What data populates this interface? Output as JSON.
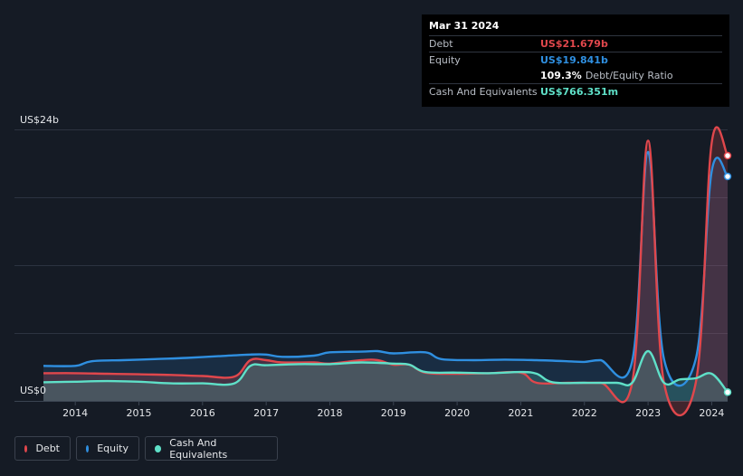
{
  "tooltip": {
    "date": "Mar 31 2024",
    "debt_label": "Debt",
    "debt_value": "US$21.679b",
    "equity_label": "Equity",
    "equity_value": "US$19.841b",
    "ratio_value": "109.3%",
    "ratio_label": "Debt/Equity Ratio",
    "cash_label": "Cash And Equivalents",
    "cash_value": "US$766.351m"
  },
  "legend": [
    {
      "label": "Debt",
      "color": "#e0474c"
    },
    {
      "label": "Equity",
      "color": "#2f8fe0"
    },
    {
      "label": "Cash And Equivalents",
      "color": "#5fe0c8"
    }
  ],
  "colors": {
    "debt": "#e0474c",
    "equity": "#2f8fe0",
    "cash": "#5fe0c8",
    "grid": "#2c3340",
    "background": "#151b25"
  },
  "chart_data": {
    "type": "area",
    "title": "",
    "xlabel": "",
    "ylabel": "",
    "y_top_label": "US$24b",
    "y_bottom_label": "US$0",
    "ylim": [
      0,
      24
    ],
    "xlim": [
      2013.5,
      2024.25
    ],
    "x_ticks": [
      {
        "value": 2014,
        "label": "2014"
      },
      {
        "value": 2015,
        "label": "2015"
      },
      {
        "value": 2016,
        "label": "2016"
      },
      {
        "value": 2017,
        "label": "2017"
      },
      {
        "value": 2018,
        "label": "2018"
      },
      {
        "value": 2019,
        "label": "2019"
      },
      {
        "value": 2020,
        "label": "2020"
      },
      {
        "value": 2021,
        "label": "2021"
      },
      {
        "value": 2022,
        "label": "2022"
      },
      {
        "value": 2023,
        "label": "2023"
      },
      {
        "value": 2024,
        "label": "2024"
      }
    ],
    "series": [
      {
        "name": "Equity",
        "key": "equity",
        "points": [
          [
            2013.5,
            3.1
          ],
          [
            2014.0,
            3.1
          ],
          [
            2014.25,
            3.5
          ],
          [
            2014.75,
            3.6
          ],
          [
            2015.25,
            3.7
          ],
          [
            2015.75,
            3.8
          ],
          [
            2016.25,
            3.95
          ],
          [
            2016.75,
            4.1
          ],
          [
            2017.0,
            4.1
          ],
          [
            2017.25,
            3.9
          ],
          [
            2017.75,
            4.0
          ],
          [
            2018.0,
            4.3
          ],
          [
            2018.5,
            4.35
          ],
          [
            2018.75,
            4.4
          ],
          [
            2019.0,
            4.2
          ],
          [
            2019.5,
            4.3
          ],
          [
            2019.75,
            3.7
          ],
          [
            2020.25,
            3.6
          ],
          [
            2020.75,
            3.65
          ],
          [
            2021.25,
            3.6
          ],
          [
            2021.75,
            3.5
          ],
          [
            2022.0,
            3.45
          ],
          [
            2022.25,
            3.6
          ],
          [
            2022.75,
            3.5
          ],
          [
            2023.0,
            22.0
          ],
          [
            2023.25,
            3.7
          ],
          [
            2023.75,
            3.7
          ],
          [
            2024.0,
            20.3
          ],
          [
            2024.25,
            19.841
          ]
        ]
      },
      {
        "name": "Debt",
        "key": "debt",
        "points": [
          [
            2013.5,
            2.45
          ],
          [
            2014.0,
            2.45
          ],
          [
            2014.5,
            2.4
          ],
          [
            2015.0,
            2.35
          ],
          [
            2015.5,
            2.3
          ],
          [
            2016.0,
            2.2
          ],
          [
            2016.5,
            2.15
          ],
          [
            2016.75,
            3.6
          ],
          [
            2017.0,
            3.6
          ],
          [
            2017.25,
            3.4
          ],
          [
            2017.75,
            3.4
          ],
          [
            2018.0,
            3.3
          ],
          [
            2018.5,
            3.6
          ],
          [
            2018.75,
            3.6
          ],
          [
            2019.0,
            3.2
          ],
          [
            2019.25,
            3.2
          ],
          [
            2019.5,
            2.5
          ],
          [
            2020.0,
            2.4
          ],
          [
            2020.5,
            2.45
          ],
          [
            2021.0,
            2.5
          ],
          [
            2021.25,
            1.6
          ],
          [
            2021.75,
            1.6
          ],
          [
            2022.25,
            1.6
          ],
          [
            2022.75,
            1.6
          ],
          [
            2023.0,
            23.0
          ],
          [
            2023.25,
            1.6
          ],
          [
            2023.75,
            1.6
          ],
          [
            2024.0,
            22.8
          ],
          [
            2024.25,
            21.679
          ]
        ]
      },
      {
        "name": "Cash And Equivalents",
        "key": "cash",
        "points": [
          [
            2013.5,
            1.65
          ],
          [
            2014.0,
            1.7
          ],
          [
            2014.5,
            1.75
          ],
          [
            2015.0,
            1.7
          ],
          [
            2015.5,
            1.55
          ],
          [
            2016.0,
            1.55
          ],
          [
            2016.5,
            1.55
          ],
          [
            2016.75,
            3.1
          ],
          [
            2017.0,
            3.15
          ],
          [
            2017.5,
            3.25
          ],
          [
            2018.0,
            3.25
          ],
          [
            2018.5,
            3.4
          ],
          [
            2019.0,
            3.3
          ],
          [
            2019.25,
            3.2
          ],
          [
            2019.5,
            2.55
          ],
          [
            2020.0,
            2.5
          ],
          [
            2020.5,
            2.45
          ],
          [
            2021.0,
            2.55
          ],
          [
            2021.25,
            2.4
          ],
          [
            2021.5,
            1.65
          ],
          [
            2022.0,
            1.6
          ],
          [
            2022.5,
            1.6
          ],
          [
            2022.75,
            1.6
          ],
          [
            2023.0,
            4.4
          ],
          [
            2023.25,
            1.6
          ],
          [
            2023.5,
            1.9
          ],
          [
            2023.75,
            2.0
          ],
          [
            2024.0,
            2.4
          ],
          [
            2024.25,
            0.766
          ]
        ]
      }
    ]
  }
}
